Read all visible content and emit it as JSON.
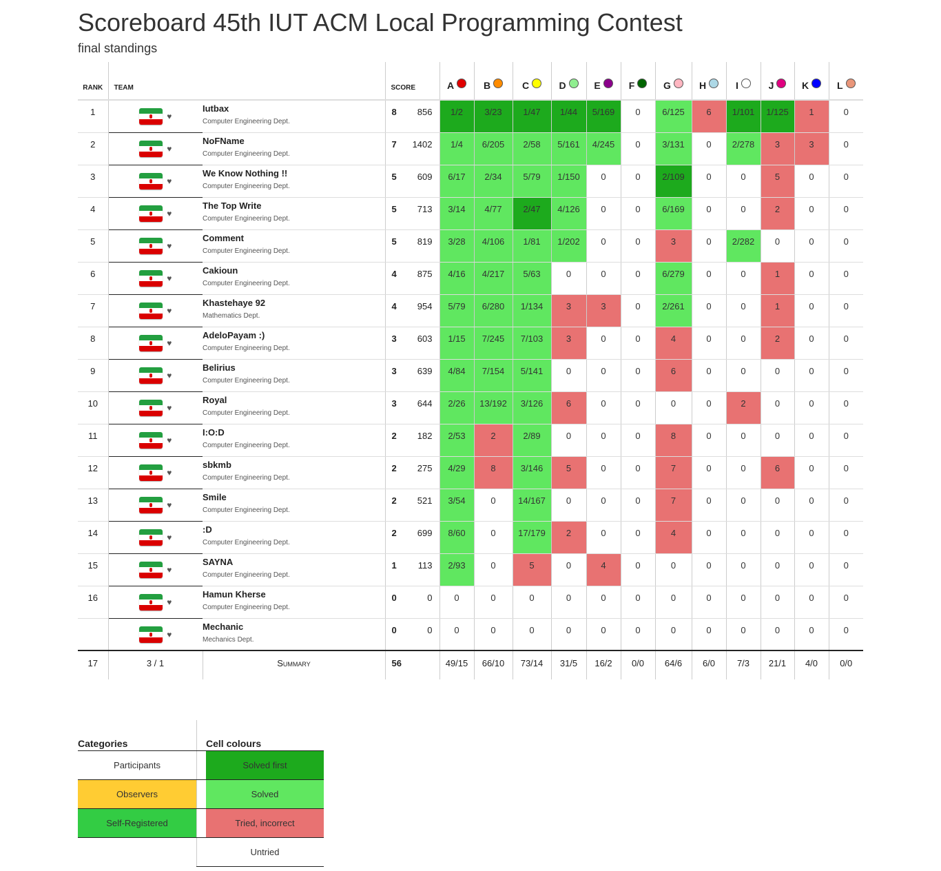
{
  "title": "Scoreboard 45th IUT ACM Local Programming Contest",
  "subtitle": "final standings",
  "headers": {
    "rank": "RANK",
    "team": "TEAM",
    "score": "SCORE"
  },
  "problems": [
    {
      "label": "A",
      "color": "#e00000"
    },
    {
      "label": "B",
      "color": "#ff8c00"
    },
    {
      "label": "C",
      "color": "#ffff00"
    },
    {
      "label": "D",
      "color": "#90ee90"
    },
    {
      "label": "E",
      "color": "#8b008b"
    },
    {
      "label": "F",
      "color": "#006400"
    },
    {
      "label": "G",
      "color": "#ffb6c1"
    },
    {
      "label": "H",
      "color": "#add8e6"
    },
    {
      "label": "I",
      "color": "#ffffff"
    },
    {
      "label": "J",
      "color": "#e00080"
    },
    {
      "label": "K",
      "color": "#0000ff"
    },
    {
      "label": "L",
      "color": "#e9967a"
    }
  ],
  "colors": {
    "solved_first": "#1daa1d",
    "solved": "#60e760",
    "incorrect": "#e87272",
    "untried": "#ffffff",
    "observers": "#ffcc33",
    "self_registered": "#33cc44",
    "flag": "iran-flag-icon",
    "favourite": "heart-icon"
  },
  "teams": [
    {
      "rank": "1",
      "name": "Iutbax",
      "affiliation": "Computer Engineering Dept.",
      "solved": "8",
      "points": "856",
      "cells": [
        [
          "1/2",
          "first"
        ],
        [
          "3/23",
          "first"
        ],
        [
          "1/47",
          "first"
        ],
        [
          "1/44",
          "first"
        ],
        [
          "5/169",
          "first"
        ],
        [
          "0",
          ""
        ],
        [
          "6/125",
          "corr"
        ],
        [
          "6",
          "incorr"
        ],
        [
          "1/101",
          "first"
        ],
        [
          "1/125",
          "first"
        ],
        [
          "1",
          "incorr"
        ],
        [
          "0",
          ""
        ]
      ]
    },
    {
      "rank": "2",
      "name": "NoFName",
      "affiliation": "Computer Engineering Dept.",
      "solved": "7",
      "points": "1402",
      "cells": [
        [
          "1/4",
          "corr"
        ],
        [
          "6/205",
          "corr"
        ],
        [
          "2/58",
          "corr"
        ],
        [
          "5/161",
          "corr"
        ],
        [
          "4/245",
          "corr"
        ],
        [
          "0",
          ""
        ],
        [
          "3/131",
          "corr"
        ],
        [
          "0",
          ""
        ],
        [
          "2/278",
          "corr"
        ],
        [
          "3",
          "incorr"
        ],
        [
          "3",
          "incorr"
        ],
        [
          "0",
          ""
        ]
      ]
    },
    {
      "rank": "3",
      "name": "We Know Nothing !!",
      "affiliation": "Computer Engineering Dept.",
      "solved": "5",
      "points": "609",
      "cells": [
        [
          "6/17",
          "corr"
        ],
        [
          "2/34",
          "corr"
        ],
        [
          "5/79",
          "corr"
        ],
        [
          "1/150",
          "corr"
        ],
        [
          "0",
          ""
        ],
        [
          "0",
          ""
        ],
        [
          "2/109",
          "first"
        ],
        [
          "0",
          ""
        ],
        [
          "0",
          ""
        ],
        [
          "5",
          "incorr"
        ],
        [
          "0",
          ""
        ],
        [
          "0",
          ""
        ]
      ]
    },
    {
      "rank": "4",
      "name": "The Top Write",
      "affiliation": "Computer Engineering Dept.",
      "solved": "5",
      "points": "713",
      "cells": [
        [
          "3/14",
          "corr"
        ],
        [
          "4/77",
          "corr"
        ],
        [
          "2/47",
          "first"
        ],
        [
          "4/126",
          "corr"
        ],
        [
          "0",
          ""
        ],
        [
          "0",
          ""
        ],
        [
          "6/169",
          "corr"
        ],
        [
          "0",
          ""
        ],
        [
          "0",
          ""
        ],
        [
          "2",
          "incorr"
        ],
        [
          "0",
          ""
        ],
        [
          "0",
          ""
        ]
      ]
    },
    {
      "rank": "5",
      "name": "Comment",
      "affiliation": "Computer Engineering Dept.",
      "solved": "5",
      "points": "819",
      "cells": [
        [
          "3/28",
          "corr"
        ],
        [
          "4/106",
          "corr"
        ],
        [
          "1/81",
          "corr"
        ],
        [
          "1/202",
          "corr"
        ],
        [
          "0",
          ""
        ],
        [
          "0",
          ""
        ],
        [
          "3",
          "incorr"
        ],
        [
          "0",
          ""
        ],
        [
          "2/282",
          "corr"
        ],
        [
          "0",
          ""
        ],
        [
          "0",
          ""
        ],
        [
          "0",
          ""
        ]
      ]
    },
    {
      "rank": "6",
      "name": "Cakioun",
      "affiliation": "Computer Engineering Dept.",
      "solved": "4",
      "points": "875",
      "cells": [
        [
          "4/16",
          "corr"
        ],
        [
          "4/217",
          "corr"
        ],
        [
          "5/63",
          "corr"
        ],
        [
          "0",
          ""
        ],
        [
          "0",
          ""
        ],
        [
          "0",
          ""
        ],
        [
          "6/279",
          "corr"
        ],
        [
          "0",
          ""
        ],
        [
          "0",
          ""
        ],
        [
          "1",
          "incorr"
        ],
        [
          "0",
          ""
        ],
        [
          "0",
          ""
        ]
      ]
    },
    {
      "rank": "7",
      "name": "Khastehaye 92",
      "affiliation": "Mathematics Dept.",
      "solved": "4",
      "points": "954",
      "cells": [
        [
          "5/79",
          "corr"
        ],
        [
          "6/280",
          "corr"
        ],
        [
          "1/134",
          "corr"
        ],
        [
          "3",
          "incorr"
        ],
        [
          "3",
          "incorr"
        ],
        [
          "0",
          ""
        ],
        [
          "2/261",
          "corr"
        ],
        [
          "0",
          ""
        ],
        [
          "0",
          ""
        ],
        [
          "1",
          "incorr"
        ],
        [
          "0",
          ""
        ],
        [
          "0",
          ""
        ]
      ]
    },
    {
      "rank": "8",
      "name": "AdeloPayam :)",
      "affiliation": "Computer Engineering Dept.",
      "solved": "3",
      "points": "603",
      "cells": [
        [
          "1/15",
          "corr"
        ],
        [
          "7/245",
          "corr"
        ],
        [
          "7/103",
          "corr"
        ],
        [
          "3",
          "incorr"
        ],
        [
          "0",
          ""
        ],
        [
          "0",
          ""
        ],
        [
          "4",
          "incorr"
        ],
        [
          "0",
          ""
        ],
        [
          "0",
          ""
        ],
        [
          "2",
          "incorr"
        ],
        [
          "0",
          ""
        ],
        [
          "0",
          ""
        ]
      ]
    },
    {
      "rank": "9",
      "name": "Belirius",
      "affiliation": "Computer Engineering Dept.",
      "solved": "3",
      "points": "639",
      "cells": [
        [
          "4/84",
          "corr"
        ],
        [
          "7/154",
          "corr"
        ],
        [
          "5/141",
          "corr"
        ],
        [
          "0",
          ""
        ],
        [
          "0",
          ""
        ],
        [
          "0",
          ""
        ],
        [
          "6",
          "incorr"
        ],
        [
          "0",
          ""
        ],
        [
          "0",
          ""
        ],
        [
          "0",
          ""
        ],
        [
          "0",
          ""
        ],
        [
          "0",
          ""
        ]
      ]
    },
    {
      "rank": "10",
      "name": "Royal",
      "affiliation": "Computer Engineering Dept.",
      "solved": "3",
      "points": "644",
      "cells": [
        [
          "2/26",
          "corr"
        ],
        [
          "13/192",
          "corr"
        ],
        [
          "3/126",
          "corr"
        ],
        [
          "6",
          "incorr"
        ],
        [
          "0",
          ""
        ],
        [
          "0",
          ""
        ],
        [
          "0",
          ""
        ],
        [
          "0",
          ""
        ],
        [
          "2",
          "incorr"
        ],
        [
          "0",
          ""
        ],
        [
          "0",
          ""
        ],
        [
          "0",
          ""
        ]
      ]
    },
    {
      "rank": "11",
      "name": "I:O:D",
      "affiliation": "Computer Engineering Dept.",
      "solved": "2",
      "points": "182",
      "cells": [
        [
          "2/53",
          "corr"
        ],
        [
          "2",
          "incorr"
        ],
        [
          "2/89",
          "corr"
        ],
        [
          "0",
          ""
        ],
        [
          "0",
          ""
        ],
        [
          "0",
          ""
        ],
        [
          "8",
          "incorr"
        ],
        [
          "0",
          ""
        ],
        [
          "0",
          ""
        ],
        [
          "0",
          ""
        ],
        [
          "0",
          ""
        ],
        [
          "0",
          ""
        ]
      ]
    },
    {
      "rank": "12",
      "name": "sbkmb",
      "affiliation": "Computer Engineering Dept.",
      "solved": "2",
      "points": "275",
      "cells": [
        [
          "4/29",
          "corr"
        ],
        [
          "8",
          "incorr"
        ],
        [
          "3/146",
          "corr"
        ],
        [
          "5",
          "incorr"
        ],
        [
          "0",
          ""
        ],
        [
          "0",
          ""
        ],
        [
          "7",
          "incorr"
        ],
        [
          "0",
          ""
        ],
        [
          "0",
          ""
        ],
        [
          "6",
          "incorr"
        ],
        [
          "0",
          ""
        ],
        [
          "0",
          ""
        ]
      ]
    },
    {
      "rank": "13",
      "name": "Smile",
      "affiliation": "Computer Engineering Dept.",
      "solved": "2",
      "points": "521",
      "cells": [
        [
          "3/54",
          "corr"
        ],
        [
          "0",
          ""
        ],
        [
          "14/167",
          "corr"
        ],
        [
          "0",
          ""
        ],
        [
          "0",
          ""
        ],
        [
          "0",
          ""
        ],
        [
          "7",
          "incorr"
        ],
        [
          "0",
          ""
        ],
        [
          "0",
          ""
        ],
        [
          "0",
          ""
        ],
        [
          "0",
          ""
        ],
        [
          "0",
          ""
        ]
      ]
    },
    {
      "rank": "14",
      "name": ":D",
      "affiliation": "Computer Engineering Dept.",
      "solved": "2",
      "points": "699",
      "cells": [
        [
          "8/60",
          "corr"
        ],
        [
          "0",
          ""
        ],
        [
          "17/179",
          "corr"
        ],
        [
          "2",
          "incorr"
        ],
        [
          "0",
          ""
        ],
        [
          "0",
          ""
        ],
        [
          "4",
          "incorr"
        ],
        [
          "0",
          ""
        ],
        [
          "0",
          ""
        ],
        [
          "0",
          ""
        ],
        [
          "0",
          ""
        ],
        [
          "0",
          ""
        ]
      ]
    },
    {
      "rank": "15",
      "name": "SAYNA",
      "affiliation": "Computer Engineering Dept.",
      "solved": "1",
      "points": "113",
      "cells": [
        [
          "2/93",
          "corr"
        ],
        [
          "0",
          ""
        ],
        [
          "5",
          "incorr"
        ],
        [
          "0",
          ""
        ],
        [
          "4",
          "incorr"
        ],
        [
          "0",
          ""
        ],
        [
          "0",
          ""
        ],
        [
          "0",
          ""
        ],
        [
          "0",
          ""
        ],
        [
          "0",
          ""
        ],
        [
          "0",
          ""
        ],
        [
          "0",
          ""
        ]
      ]
    },
    {
      "rank": "16",
      "name": "Hamun Kherse",
      "affiliation": "Computer Engineering Dept.",
      "solved": "0",
      "points": "0",
      "cells": [
        [
          "0",
          ""
        ],
        [
          "0",
          ""
        ],
        [
          "0",
          ""
        ],
        [
          "0",
          ""
        ],
        [
          "0",
          ""
        ],
        [
          "0",
          ""
        ],
        [
          "0",
          ""
        ],
        [
          "0",
          ""
        ],
        [
          "0",
          ""
        ],
        [
          "0",
          ""
        ],
        [
          "0",
          ""
        ],
        [
          "0",
          ""
        ]
      ]
    },
    {
      "rank": "",
      "name": "Mechanic",
      "affiliation": "Mechanics Dept.",
      "solved": "0",
      "points": "0",
      "cells": [
        [
          "0",
          ""
        ],
        [
          "0",
          ""
        ],
        [
          "0",
          ""
        ],
        [
          "0",
          ""
        ],
        [
          "0",
          ""
        ],
        [
          "0",
          ""
        ],
        [
          "0",
          ""
        ],
        [
          "0",
          ""
        ],
        [
          "0",
          ""
        ],
        [
          "0",
          ""
        ],
        [
          "0",
          ""
        ],
        [
          "0",
          ""
        ]
      ]
    }
  ],
  "summary": {
    "teams_count": "17",
    "affiliations": "3 / 1",
    "label": "Summary",
    "solved_total": "56",
    "problems": [
      "49/15",
      "66/10",
      "73/14",
      "31/5",
      "16/2",
      "0/0",
      "64/6",
      "6/0",
      "7/3",
      "21/1",
      "4/0",
      "0/0"
    ]
  },
  "legend": {
    "categories_title": "Categories",
    "categories": [
      {
        "label": "Participants",
        "color": "#ffffff"
      },
      {
        "label": "Observers",
        "color": "#ffcc33"
      },
      {
        "label": "Self-Registered",
        "color": "#33cc44"
      }
    ],
    "colours_title": "Cell colours",
    "colours": [
      {
        "label": "Solved first",
        "color": "#1daa1d"
      },
      {
        "label": "Solved",
        "color": "#60e760"
      },
      {
        "label": "Tried, incorrect",
        "color": "#e87272"
      },
      {
        "label": "Untried",
        "color": "#ffffff"
      }
    ]
  }
}
